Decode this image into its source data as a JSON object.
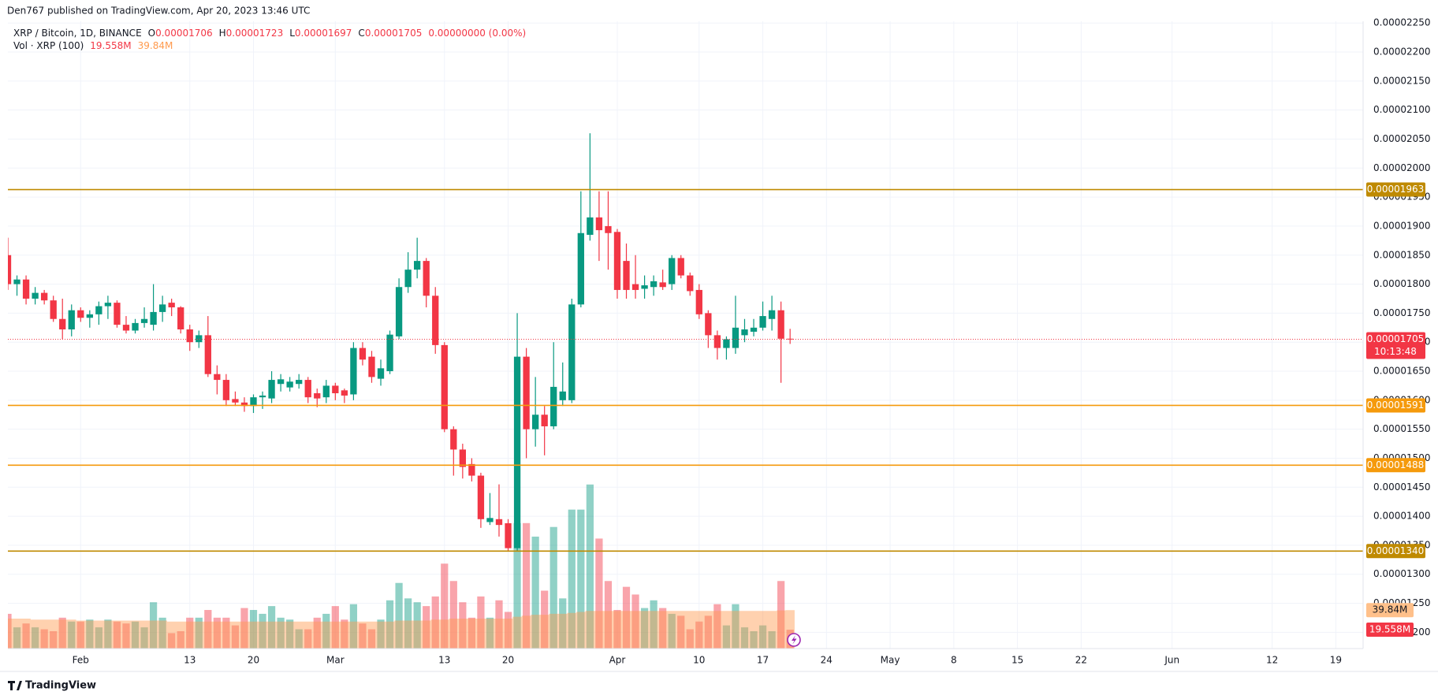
{
  "chart_data": {
    "type": "candlestick",
    "header": "Den767 published on TradingView.com, Apr 20, 2023 13:46 UTC",
    "footer": "TradingView",
    "legend": {
      "symbol": "XRP / Bitcoin, 1D, BINANCE",
      "items": [
        {
          "key": "O",
          "value": "0.00001706"
        },
        {
          "key": "H",
          "value": "0.00001723"
        },
        {
          "key": "L",
          "value": "0.00001697"
        },
        {
          "key": "C",
          "value": "0.00001705"
        }
      ],
      "change": "0.00000000 (0.00%)"
    },
    "up_color": "#089981",
    "down_color": "#f23645",
    "x": [
      "2023-01-24",
      "2023-01-25",
      "2023-01-26",
      "2023-01-27",
      "2023-01-28",
      "2023-01-29",
      "2023-01-30",
      "2023-01-31",
      "2023-02-01",
      "2023-02-02",
      "2023-02-03",
      "2023-02-04",
      "2023-02-05",
      "2023-02-06",
      "2023-02-07",
      "2023-02-08",
      "2023-02-09",
      "2023-02-10",
      "2023-02-11",
      "2023-02-12",
      "2023-02-13",
      "2023-02-14",
      "2023-02-15",
      "2023-02-16",
      "2023-02-17",
      "2023-02-18",
      "2023-02-19",
      "2023-02-20",
      "2023-02-21",
      "2023-02-22",
      "2023-02-23",
      "2023-02-24",
      "2023-02-25",
      "2023-02-26",
      "2023-02-27",
      "2023-02-28",
      "2023-03-01",
      "2023-03-02",
      "2023-03-03",
      "2023-03-04",
      "2023-03-05",
      "2023-03-06",
      "2023-03-07",
      "2023-03-08",
      "2023-03-09",
      "2023-03-10",
      "2023-03-11",
      "2023-03-12",
      "2023-03-13",
      "2023-03-14",
      "2023-03-15",
      "2023-03-16",
      "2023-03-17",
      "2023-03-18",
      "2023-03-19",
      "2023-03-20",
      "2023-03-21",
      "2023-03-22",
      "2023-03-23",
      "2023-03-24",
      "2023-03-25",
      "2023-03-26",
      "2023-03-27",
      "2023-03-28",
      "2023-03-29",
      "2023-03-30",
      "2023-03-31",
      "2023-04-01",
      "2023-04-02",
      "2023-04-03",
      "2023-04-04",
      "2023-04-05",
      "2023-04-06",
      "2023-04-07",
      "2023-04-08",
      "2023-04-09",
      "2023-04-10",
      "2023-04-11",
      "2023-04-12",
      "2023-04-13",
      "2023-04-14",
      "2023-04-15",
      "2023-04-16",
      "2023-04-17",
      "2023-04-18",
      "2023-04-19",
      "2023-04-20"
    ],
    "open": [
      1.85e-05,
      1.8e-05,
      1.808e-05,
      1.775e-05,
      1.785e-05,
      1.772e-05,
      1.74e-05,
      1.722e-05,
      1.755e-05,
      1.742e-05,
      1.748e-05,
      1.762e-05,
      1.768e-05,
      1.73e-05,
      1.72e-05,
      1.733e-05,
      1.73e-05,
      1.752e-05,
      1.768e-05,
      1.76e-05,
      1.722e-05,
      1.7e-05,
      1.712e-05,
      1.645e-05,
      1.635e-05,
      1.602e-05,
      1.596e-05,
      1.59e-05,
      1.605e-05,
      1.603e-05,
      1.628e-05,
      1.622e-05,
      1.628e-05,
      1.635e-05,
      1.612e-05,
      1.605e-05,
      1.625e-05,
      1.617e-05,
      1.61e-05,
      1.69e-05,
      1.675e-05,
      1.637e-05,
      1.65e-05,
      1.71e-05,
      1.795e-05,
      1.825e-05,
      1.84e-05,
      1.78e-05,
      1.695e-05,
      1.55e-05,
      1.515e-05,
      1.49e-05,
      1.47e-05,
      1.39e-05,
      1.395e-05,
      1.388e-05,
      1.345e-05,
      1.675e-05,
      1.55e-05,
      1.575e-05,
      1.555e-05,
      1.6e-05,
      1.6e-05,
      1.765e-05,
      1.885e-05,
      1.915e-05,
      1.9e-05,
      1.89e-05,
      1.84e-05,
      1.8e-05,
      1.792e-05,
      1.795e-05,
      1.803e-05,
      1.8e-05,
      1.845e-05,
      1.815e-05,
      1.79e-05,
      1.75e-05,
      1.712e-05,
      1.69e-05,
      1.69e-05,
      1.712e-05,
      1.718e-05,
      1.725e-05,
      1.74e-05,
      1.755e-05,
      1.706e-05
    ],
    "high": [
      1.88e-05,
      1.815e-05,
      1.815e-05,
      1.795e-05,
      1.79e-05,
      1.78e-05,
      1.775e-05,
      1.765e-05,
      1.76e-05,
      1.755e-05,
      1.77e-05,
      1.78e-05,
      1.772e-05,
      1.745e-05,
      1.74e-05,
      1.76e-05,
      1.8e-05,
      1.78e-05,
      1.775e-05,
      1.762e-05,
      1.73e-05,
      1.72e-05,
      1.745e-05,
      1.66e-05,
      1.645e-05,
      1.615e-05,
      1.605e-05,
      1.61e-05,
      1.615e-05,
      1.65e-05,
      1.645e-05,
      1.64e-05,
      1.645e-05,
      1.64e-05,
      1.62e-05,
      1.635e-05,
      1.63e-05,
      1.62e-05,
      1.7e-05,
      1.7e-05,
      1.685e-05,
      1.67e-05,
      1.72e-05,
      1.81e-05,
      1.855e-05,
      1.88e-05,
      1.845e-05,
      1.795e-05,
      1.7e-05,
      1.555e-05,
      1.525e-05,
      1.5e-05,
      1.475e-05,
      1.44e-05,
      1.455e-05,
      1.395e-05,
      1.75e-05,
      1.69e-05,
      1.64e-05,
      1.59e-05,
      1.7e-05,
      1.665e-05,
      1.775e-05,
      1.96e-05,
      2.06e-05,
      1.96e-05,
      1.96e-05,
      1.895e-05,
      1.87e-05,
      1.85e-05,
      1.815e-05,
      1.815e-05,
      1.825e-05,
      1.85e-05,
      1.85e-05,
      1.82e-05,
      1.8e-05,
      1.755e-05,
      1.72e-05,
      1.71e-05,
      1.78e-05,
      1.74e-05,
      1.74e-05,
      1.77e-05,
      1.78e-05,
      1.77e-05,
      1.723e-05
    ],
    "low": [
      1.79e-05,
      1.78e-05,
      1.765e-05,
      1.765e-05,
      1.765e-05,
      1.735e-05,
      1.705e-05,
      1.71e-05,
      1.735e-05,
      1.725e-05,
      1.73e-05,
      1.74e-05,
      1.725e-05,
      1.715e-05,
      1.715e-05,
      1.725e-05,
      1.72e-05,
      1.735e-05,
      1.745e-05,
      1.715e-05,
      1.685e-05,
      1.69e-05,
      1.64e-05,
      1.61e-05,
      1.59e-05,
      1.59e-05,
      1.58e-05,
      1.578e-05,
      1.585e-05,
      1.595e-05,
      1.615e-05,
      1.615e-05,
      1.62e-05,
      1.595e-05,
      1.588e-05,
      1.595e-05,
      1.6e-05,
      1.595e-05,
      1.6e-05,
      1.66e-05,
      1.63e-05,
      1.625e-05,
      1.645e-05,
      1.705e-05,
      1.785e-05,
      1.81e-05,
      1.76e-05,
      1.68e-05,
      1.545e-05,
      1.47e-05,
      1.465e-05,
      1.46e-05,
      1.38e-05,
      1.385e-05,
      1.365e-05,
      1.34e-05,
      1.34e-05,
      1.5e-05,
      1.52e-05,
      1.505e-05,
      1.55e-05,
      1.59e-05,
      1.595e-05,
      1.76e-05,
      1.875e-05,
      1.84e-05,
      1.825e-05,
      1.775e-05,
      1.775e-05,
      1.775e-05,
      1.775e-05,
      1.78e-05,
      1.79e-05,
      1.79e-05,
      1.81e-05,
      1.78e-05,
      1.74e-05,
      1.69e-05,
      1.67e-05,
      1.67e-05,
      1.68e-05,
      1.7e-05,
      1.71e-05,
      1.72e-05,
      1.72e-05,
      1.63e-05,
      1.697e-05
    ],
    "close": [
      1.8e-05,
      1.808e-05,
      1.775e-05,
      1.785e-05,
      1.772e-05,
      1.74e-05,
      1.722e-05,
      1.755e-05,
      1.742e-05,
      1.748e-05,
      1.762e-05,
      1.768e-05,
      1.73e-05,
      1.72e-05,
      1.733e-05,
      1.74e-05,
      1.752e-05,
      1.765e-05,
      1.76e-05,
      1.722e-05,
      1.7e-05,
      1.712e-05,
      1.645e-05,
      1.635e-05,
      1.6e-05,
      1.596e-05,
      1.59e-05,
      1.605e-05,
      1.608e-05,
      1.635e-05,
      1.636e-05,
      1.632e-05,
      1.635e-05,
      1.605e-05,
      1.603e-05,
      1.625e-05,
      1.612e-05,
      1.608e-05,
      1.69e-05,
      1.67e-05,
      1.64e-05,
      1.655e-05,
      1.713e-05,
      1.795e-05,
      1.825e-05,
      1.84e-05,
      1.78e-05,
      1.695e-05,
      1.55e-05,
      1.515e-05,
      1.485e-05,
      1.47e-05,
      1.395e-05,
      1.397e-05,
      1.385e-05,
      1.345e-05,
      1.675e-05,
      1.55e-05,
      1.575e-05,
      1.555e-05,
      1.623e-05,
      1.615e-05,
      1.765e-05,
      1.888e-05,
      1.915e-05,
      1.893e-05,
      1.888e-05,
      1.79e-05,
      1.79e-05,
      1.79e-05,
      1.798e-05,
      1.805e-05,
      1.795e-05,
      1.845e-05,
      1.815e-05,
      1.788e-05,
      1.748e-05,
      1.712e-05,
      1.69e-05,
      1.705e-05,
      1.725e-05,
      1.722e-05,
      1.725e-05,
      1.745e-05,
      1.755e-05,
      1.706e-05,
      1.705e-05
    ],
    "xlim": [
      "2023-01-24",
      "2023-06-22"
    ],
    "xticks": [
      {
        "value": "2023-02-01",
        "label": "Feb"
      },
      {
        "value": "2023-02-13",
        "label": "13"
      },
      {
        "value": "2023-02-20",
        "label": "20"
      },
      {
        "value": "2023-03-01",
        "label": "Mar"
      },
      {
        "value": "2023-03-13",
        "label": "13"
      },
      {
        "value": "2023-03-20",
        "label": "20"
      },
      {
        "value": "2023-04-01",
        "label": "Apr"
      },
      {
        "value": "2023-04-10",
        "label": "10"
      },
      {
        "value": "2023-04-17",
        "label": "17"
      },
      {
        "value": "2023-04-24",
        "label": "24"
      },
      {
        "value": "2023-05-01",
        "label": "May"
      },
      {
        "value": "2023-05-08",
        "label": "8"
      },
      {
        "value": "2023-05-15",
        "label": "15"
      },
      {
        "value": "2023-05-22",
        "label": "22"
      },
      {
        "value": "2023-06-01",
        "label": "Jun"
      },
      {
        "value": "2023-06-12",
        "label": "12"
      },
      {
        "value": "2023-06-19",
        "label": "19"
      }
    ],
    "ylim": [
      1.172e-05,
      2.253e-05
    ],
    "yticks": [
      {
        "value": 1.2e-05,
        "label": "0.00001200"
      },
      {
        "value": 1.25e-05,
        "label": "0.00001250"
      },
      {
        "value": 1.3e-05,
        "label": "0.00001300"
      },
      {
        "value": 1.35e-05,
        "label": "0.00001350"
      },
      {
        "value": 1.4e-05,
        "label": "0.00001400"
      },
      {
        "value": 1.45e-05,
        "label": "0.00001450"
      },
      {
        "value": 1.5e-05,
        "label": "0.00001500"
      },
      {
        "value": 1.55e-05,
        "label": "0.00001550"
      },
      {
        "value": 1.6e-05,
        "label": "0.00001600"
      },
      {
        "value": 1.65e-05,
        "label": "0.00001650"
      },
      {
        "value": 1.7e-05,
        "label": "0.00001700"
      },
      {
        "value": 1.75e-05,
        "label": "0.00001750"
      },
      {
        "value": 1.8e-05,
        "label": "0.00001800"
      },
      {
        "value": 1.85e-05,
        "label": "0.00001850"
      },
      {
        "value": 1.9e-05,
        "label": "0.00001900"
      },
      {
        "value": 1.95e-05,
        "label": "0.00001950"
      },
      {
        "value": 2e-05,
        "label": "0.00002000"
      },
      {
        "value": 2.05e-05,
        "label": "0.00002050"
      },
      {
        "value": 2.1e-05,
        "label": "0.00002100"
      },
      {
        "value": 2.15e-05,
        "label": "0.00002150"
      },
      {
        "value": 2.2e-05,
        "label": "0.00002200"
      },
      {
        "value": 2.25e-05,
        "label": "0.00002250"
      }
    ],
    "grid": true,
    "levels": [
      {
        "value": 1.963e-05,
        "label": "0.00001963",
        "color": "#bf8a00"
      },
      {
        "value": 1.591e-05,
        "label": "0.00001591",
        "color": "#f59a0c"
      },
      {
        "value": 1.488e-05,
        "label": "0.00001488",
        "color": "#f59a0c"
      },
      {
        "value": 1.34e-05,
        "label": "0.00001340",
        "color": "#bf8a00"
      }
    ],
    "last_price": {
      "value": 1.705e-05,
      "label": "0.00001705",
      "countdown": "10:13:48",
      "color": "#f23645"
    },
    "volume": {
      "name": "Vol · XRP (100)",
      "vlim": [
        0,
        650
      ],
      "values": [
        36,
        22,
        26,
        22,
        20,
        18,
        32,
        28,
        28,
        30,
        22,
        30,
        28,
        26,
        28,
        22,
        48,
        32,
        16,
        18,
        32,
        32,
        40,
        32,
        32,
        24,
        42,
        40,
        36,
        44,
        32,
        30,
        20,
        20,
        32,
        36,
        44,
        30,
        46,
        26,
        20,
        30,
        50,
        68,
        52,
        48,
        44,
        54,
        88,
        70,
        48,
        32,
        54,
        32,
        50,
        38,
        130,
        130,
        116,
        60,
        126,
        52,
        144,
        144,
        170,
        114,
        70,
        40,
        64,
        56,
        42,
        50,
        42,
        36,
        34,
        20,
        28,
        34,
        46,
        24,
        46,
        22,
        18,
        24,
        18,
        70,
        19.558
      ],
      "last_label": "19.558M",
      "ma_values": [
        31,
        31,
        31,
        30,
        30,
        30,
        30,
        30,
        29,
        29,
        29,
        29,
        29,
        29,
        29,
        29,
        29,
        29,
        28,
        28,
        28,
        28,
        28,
        28,
        28,
        28,
        28,
        28,
        28,
        28,
        28,
        28,
        28,
        28,
        28,
        28,
        28,
        28,
        28,
        28,
        28,
        28,
        28,
        29,
        29,
        29,
        29,
        30,
        30,
        31,
        31,
        31,
        31,
        31,
        31,
        31,
        33,
        34,
        35,
        35,
        36,
        36,
        37,
        38,
        39,
        39,
        39,
        39,
        39,
        39,
        39,
        39,
        39,
        39,
        39,
        39,
        39,
        39,
        39,
        39,
        39,
        39,
        39,
        39,
        39,
        39.5,
        39.84
      ],
      "ma_last_label": "39.84M",
      "ma_color": "#ff9a4d"
    }
  }
}
